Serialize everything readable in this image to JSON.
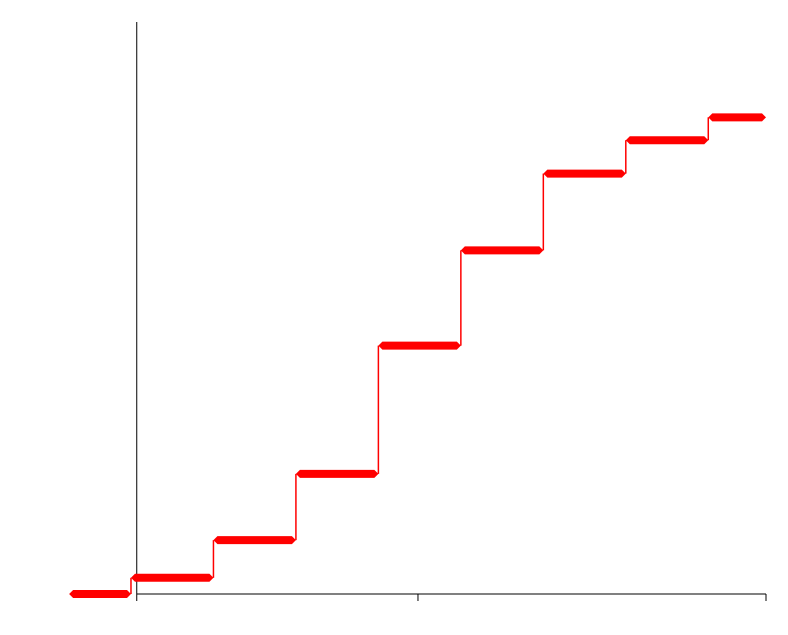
{
  "chart_data": {
    "type": "step",
    "color": "#ff0000",
    "x": [
      -0.75,
      0,
      1,
      2,
      3,
      4,
      5,
      6,
      7
    ],
    "values": [
      0,
      0.034,
      0.113,
      0.252,
      0.521,
      0.721,
      0.882,
      0.952,
      1
    ],
    "xlim": [
      -0.8,
      7.7
    ],
    "xticks": [
      0.07,
      3.48,
      7.7
    ],
    "ylim": [
      0,
      1.2
    ]
  }
}
